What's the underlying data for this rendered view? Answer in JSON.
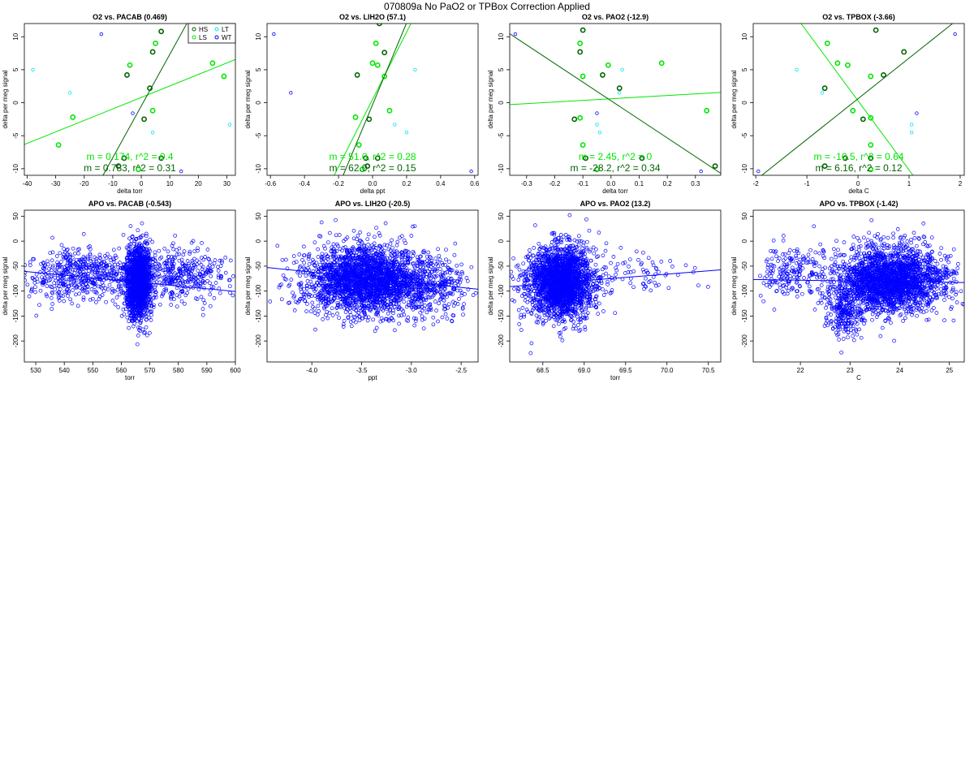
{
  "page_title": "070809a   No PaO2 or TPBox Correction Applied",
  "colors": {
    "HS": "#006400",
    "LS": "#00e600",
    "LT": "#00e5ee",
    "WT": "#0000ff",
    "apo": "#0000ff"
  },
  "legend": {
    "entries": [
      {
        "label": "HS",
        "color": "#006400"
      },
      {
        "label": "LT",
        "color": "#00e5ee"
      },
      {
        "label": "LS",
        "color": "#00e600"
      },
      {
        "label": "WT",
        "color": "#0000ff"
      }
    ]
  },
  "chart_data": [
    {
      "type": "scatter",
      "title": "O2 vs. PACAB (0.469)",
      "xlabel": "delta torr",
      "ylabel": "delta per meg signal",
      "xlim": [
        -41,
        33
      ],
      "ylim": [
        -11,
        12
      ],
      "xticks": [
        -40,
        -30,
        -20,
        -10,
        0,
        10,
        20,
        30
      ],
      "yticks": [
        -10,
        -5,
        0,
        5,
        10
      ],
      "legend": true,
      "points": [
        {
          "x": 7,
          "y": 10.8,
          "g": "HS"
        },
        {
          "x": 4,
          "y": 7.7,
          "g": "HS"
        },
        {
          "x": -5,
          "y": 4.2,
          "g": "HS"
        },
        {
          "x": 3,
          "y": 2.2,
          "g": "HS"
        },
        {
          "x": 1,
          "y": -2.5,
          "g": "HS"
        },
        {
          "x": -6,
          "y": -8.4,
          "g": "HS"
        },
        {
          "x": 7,
          "y": -8.4,
          "g": "HS"
        },
        {
          "x": -8,
          "y": -9.6,
          "g": "HS"
        },
        {
          "x": 5,
          "y": 9,
          "g": "LS"
        },
        {
          "x": -4,
          "y": 5.7,
          "g": "LS"
        },
        {
          "x": 25,
          "y": 6,
          "g": "LS"
        },
        {
          "x": 29,
          "y": 4,
          "g": "LS"
        },
        {
          "x": 4,
          "y": -1.2,
          "g": "LS"
        },
        {
          "x": -24,
          "y": -2.2,
          "g": "LS"
        },
        {
          "x": -29,
          "y": -6.4,
          "g": "LS"
        },
        {
          "x": -1,
          "y": -10.1,
          "g": "LS"
        },
        {
          "x": -38,
          "y": 5,
          "g": "LT"
        },
        {
          "x": -25,
          "y": 1.5,
          "g": "LT"
        },
        {
          "x": 31,
          "y": -3.3,
          "g": "LT"
        },
        {
          "x": 4,
          "y": -4.5,
          "g": "LT"
        },
        {
          "x": -14,
          "y": 10.4,
          "g": "WT"
        },
        {
          "x": -3,
          "y": -1.6,
          "g": "WT"
        },
        {
          "x": 14,
          "y": -10.4,
          "g": "WT"
        }
      ],
      "fits": [
        {
          "group": "LS",
          "slope": 0.174,
          "intercept": 0.8
        },
        {
          "group": "HS",
          "slope": 0.783,
          "intercept": -0.5
        }
      ],
      "annotations": [
        {
          "text": "m = 0.174, r^2 = 0.4",
          "color": "#00e600"
        },
        {
          "text": "m = 0.783, r^2 = 0.31",
          "color": "#006400"
        }
      ]
    },
    {
      "type": "scatter",
      "title": "O2 vs. LIH2O (57.1)",
      "xlabel": "delta ppt",
      "ylabel": "delta per meg signal",
      "xlim": [
        -0.62,
        0.62
      ],
      "ylim": [
        -11,
        12
      ],
      "xticks": [
        -0.6,
        -0.4,
        -0.2,
        0.0,
        0.2,
        0.4,
        0.6
      ],
      "yticks": [
        -10,
        -5,
        0,
        5,
        10
      ],
      "legend": false,
      "points": [
        {
          "x": 0.04,
          "y": 12,
          "g": "HS"
        },
        {
          "x": 0.07,
          "y": 7.6,
          "g": "HS"
        },
        {
          "x": -0.09,
          "y": 4.2,
          "g": "HS"
        },
        {
          "x": -0.02,
          "y": -2.5,
          "g": "HS"
        },
        {
          "x": -0.04,
          "y": -8.4,
          "g": "HS"
        },
        {
          "x": 0.03,
          "y": -8.4,
          "g": "HS"
        },
        {
          "x": -0.03,
          "y": -9.6,
          "g": "HS"
        },
        {
          "x": 0.02,
          "y": 9,
          "g": "LS"
        },
        {
          "x": 0.0,
          "y": 6,
          "g": "LS"
        },
        {
          "x": 0.03,
          "y": 5.7,
          "g": "LS"
        },
        {
          "x": 0.07,
          "y": 4,
          "g": "LS"
        },
        {
          "x": 0.1,
          "y": -1.2,
          "g": "LS"
        },
        {
          "x": -0.1,
          "y": -2.2,
          "g": "LS"
        },
        {
          "x": -0.08,
          "y": -6.4,
          "g": "LS"
        },
        {
          "x": -0.06,
          "y": -10.1,
          "g": "LS"
        },
        {
          "x": 0.25,
          "y": 5,
          "g": "LT"
        },
        {
          "x": 0.13,
          "y": -3.3,
          "g": "LT"
        },
        {
          "x": 0.2,
          "y": -4.5,
          "g": "LT"
        },
        {
          "x": -0.58,
          "y": 10.4,
          "g": "WT"
        },
        {
          "x": -0.48,
          "y": 1.5,
          "g": "WT"
        },
        {
          "x": 0.58,
          "y": -10.4,
          "g": "WT"
        }
      ],
      "fits": [
        {
          "group": "LS",
          "slope": 51.0,
          "intercept": 0.5
        },
        {
          "group": "HS",
          "slope": 62.0,
          "intercept": -0.3
        }
      ],
      "annotations": [
        {
          "text": "m = 51.0, r^2 = 0.28",
          "color": "#00e600"
        },
        {
          "text": "m = 62.0, r^2 = 0.15",
          "color": "#006400"
        }
      ]
    },
    {
      "type": "scatter",
      "title": "O2 vs. PAO2 (-12.9)",
      "xlabel": "delta torr",
      "ylabel": "delta per meg signal",
      "xlim": [
        -0.36,
        0.39
      ],
      "ylim": [
        -11,
        12
      ],
      "xticks": [
        -0.3,
        -0.2,
        -0.1,
        0.0,
        0.1,
        0.2,
        0.3
      ],
      "yticks": [
        -10,
        -5,
        0,
        5,
        10
      ],
      "legend": false,
      "points": [
        {
          "x": -0.1,
          "y": 11,
          "g": "HS"
        },
        {
          "x": -0.11,
          "y": 7.7,
          "g": "HS"
        },
        {
          "x": -0.03,
          "y": 4.2,
          "g": "HS"
        },
        {
          "x": 0.03,
          "y": 2.2,
          "g": "HS"
        },
        {
          "x": -0.13,
          "y": -2.5,
          "g": "HS"
        },
        {
          "x": -0.09,
          "y": -8.4,
          "g": "HS"
        },
        {
          "x": 0.11,
          "y": -8.4,
          "g": "HS"
        },
        {
          "x": 0.37,
          "y": -9.6,
          "g": "HS"
        },
        {
          "x": -0.11,
          "y": 9,
          "g": "LS"
        },
        {
          "x": -0.01,
          "y": 5.7,
          "g": "LS"
        },
        {
          "x": 0.18,
          "y": 6,
          "g": "LS"
        },
        {
          "x": -0.1,
          "y": 4,
          "g": "LS"
        },
        {
          "x": 0.34,
          "y": -1.2,
          "g": "LS"
        },
        {
          "x": -0.11,
          "y": -2.3,
          "g": "LS"
        },
        {
          "x": -0.1,
          "y": -6.4,
          "g": "LS"
        },
        {
          "x": -0.05,
          "y": -10.1,
          "g": "LS"
        },
        {
          "x": 0.04,
          "y": 5,
          "g": "LT"
        },
        {
          "x": 0.03,
          "y": 1.5,
          "g": "LT"
        },
        {
          "x": -0.05,
          "y": -3.3,
          "g": "LT"
        },
        {
          "x": -0.04,
          "y": -4.5,
          "g": "LT"
        },
        {
          "x": -0.34,
          "y": 10.4,
          "g": "WT"
        },
        {
          "x": -0.05,
          "y": -1.6,
          "g": "WT"
        },
        {
          "x": 0.32,
          "y": -10.4,
          "g": "WT"
        }
      ],
      "fits": [
        {
          "group": "LS",
          "slope": 2.45,
          "intercept": 0.6
        },
        {
          "group": "HS",
          "slope": -28.2,
          "intercept": 0.3
        }
      ],
      "annotations": [
        {
          "text": "m = 2.45, r^2 = 0",
          "color": "#00e600"
        },
        {
          "text": "m = -28.2, r^2 = 0.34",
          "color": "#006400"
        }
      ]
    },
    {
      "type": "scatter",
      "title": "O2 vs. TPBOX (-3.66)",
      "xlabel": "delta C",
      "ylabel": "delta per meg signal",
      "xlim": [
        -2.05,
        2.08
      ],
      "ylim": [
        -11,
        12
      ],
      "xticks": [
        -2,
        -1,
        0,
        1,
        2
      ],
      "yticks": [
        -10,
        -5,
        0,
        5,
        10
      ],
      "legend": false,
      "points": [
        {
          "x": 0.35,
          "y": 11,
          "g": "HS"
        },
        {
          "x": 0.9,
          "y": 7.7,
          "g": "HS"
        },
        {
          "x": 0.5,
          "y": 4.2,
          "g": "HS"
        },
        {
          "x": -0.65,
          "y": 2.2,
          "g": "HS"
        },
        {
          "x": 0.1,
          "y": -2.5,
          "g": "HS"
        },
        {
          "x": 0.25,
          "y": -8.4,
          "g": "HS"
        },
        {
          "x": -0.25,
          "y": -8.4,
          "g": "HS"
        },
        {
          "x": -0.65,
          "y": -9.6,
          "g": "HS"
        },
        {
          "x": -0.6,
          "y": 9,
          "g": "LS"
        },
        {
          "x": -0.2,
          "y": 5.7,
          "g": "LS"
        },
        {
          "x": -0.4,
          "y": 6,
          "g": "LS"
        },
        {
          "x": 0.25,
          "y": 4,
          "g": "LS"
        },
        {
          "x": -0.1,
          "y": -1.2,
          "g": "LS"
        },
        {
          "x": 0.25,
          "y": -2.3,
          "g": "LS"
        },
        {
          "x": 0.25,
          "y": -6.4,
          "g": "LS"
        },
        {
          "x": 0.25,
          "y": -10.1,
          "g": "LS"
        },
        {
          "x": -1.2,
          "y": 5,
          "g": "LT"
        },
        {
          "x": -0.7,
          "y": 1.5,
          "g": "LT"
        },
        {
          "x": 1.05,
          "y": -3.3,
          "g": "LT"
        },
        {
          "x": 1.05,
          "y": -4.5,
          "g": "LT"
        },
        {
          "x": 1.9,
          "y": 10.4,
          "g": "WT"
        },
        {
          "x": 1.15,
          "y": -1.6,
          "g": "WT"
        },
        {
          "x": -1.95,
          "y": -10.4,
          "g": "WT"
        }
      ],
      "fits": [
        {
          "group": "LS",
          "slope": -10.5,
          "intercept": 0.3
        },
        {
          "group": "HS",
          "slope": 6.16,
          "intercept": 0.6
        }
      ],
      "annotations": [
        {
          "text": "m = -10.5, r^2 = 0.64",
          "color": "#00e600"
        },
        {
          "text": "m = 6.16, r^2 = 0.12",
          "color": "#006400"
        }
      ]
    },
    {
      "type": "scatter",
      "title": "APO vs. PACAB (-0.543)",
      "xlabel": "torr",
      "ylabel": "delta per meg signal",
      "xlim": [
        526,
        600
      ],
      "ylim": [
        -242,
        62
      ],
      "xticks": [
        530,
        540,
        550,
        560,
        570,
        580,
        590,
        600
      ],
      "yticks": [
        -200,
        -150,
        -100,
        -50,
        0,
        50
      ],
      "legend": false,
      "clouds": [
        {
          "n": 1500,
          "cx": 566,
          "sx": 2.2,
          "cy": -82,
          "sy": 36
        },
        {
          "n": 520,
          "cx": 546,
          "sx": 10,
          "cy": -68,
          "sy": 26
        },
        {
          "n": 380,
          "cx": 580,
          "sx": 8,
          "cy": -68,
          "sy": 28
        }
      ],
      "fits": [
        {
          "group": "apo",
          "slope": -0.543,
          "intercept": 225
        }
      ]
    },
    {
      "type": "scatter",
      "title": "APO vs. LIH2O (-20.5)",
      "xlabel": "ppt",
      "ylabel": "delta per meg signal",
      "xlim": [
        -4.45,
        -2.33
      ],
      "ylim": [
        -242,
        62
      ],
      "xticks": [
        -4.0,
        -3.5,
        -3.0,
        -2.5
      ],
      "yticks": [
        -200,
        -150,
        -100,
        -50,
        0,
        50
      ],
      "legend": false,
      "clouds": [
        {
          "n": 2400,
          "cx": -3.45,
          "sx": 0.3,
          "cy": -78,
          "sy": 34
        },
        {
          "n": 300,
          "cx": -2.8,
          "sx": 0.2,
          "cy": -95,
          "sy": 30
        }
      ],
      "fits": [
        {
          "group": "apo",
          "slope": -20.5,
          "intercept": -144
        }
      ]
    },
    {
      "type": "scatter",
      "title": "APO vs. PAO2 (13.2)",
      "xlabel": "torr",
      "ylabel": "delta per meg signal",
      "xlim": [
        68.1,
        70.65
      ],
      "ylim": [
        -242,
        62
      ],
      "xticks": [
        68.5,
        69.0,
        69.5,
        70.0,
        70.5
      ],
      "yticks": [
        -200,
        -150,
        -100,
        -50,
        0,
        50
      ],
      "legend": false,
      "clouds": [
        {
          "n": 2300,
          "cx": 68.72,
          "sx": 0.2,
          "cy": -82,
          "sy": 36
        },
        {
          "n": 80,
          "cx": 69.6,
          "sx": 0.35,
          "cy": -62,
          "sy": 22
        }
      ],
      "fits": [
        {
          "group": "apo",
          "slope": 13.2,
          "intercept": -990
        }
      ]
    },
    {
      "type": "scatter",
      "title": "APO vs. TPBOX (-1.42)",
      "xlabel": "C",
      "ylabel": "delta per meg signal",
      "xlim": [
        21.05,
        25.3
      ],
      "ylim": [
        -242,
        62
      ],
      "xticks": [
        22,
        23,
        24,
        25
      ],
      "yticks": [
        -200,
        -150,
        -100,
        -50,
        0,
        50
      ],
      "legend": false,
      "clouds": [
        {
          "n": 2300,
          "cx": 23.8,
          "sx": 0.55,
          "cy": -78,
          "sy": 32
        },
        {
          "n": 180,
          "cx": 21.8,
          "sx": 0.3,
          "cy": -62,
          "sy": 26
        },
        {
          "n": 220,
          "cx": 22.9,
          "sx": 0.2,
          "cy": -150,
          "sy": 25
        }
      ],
      "fits": [
        {
          "group": "apo",
          "slope": -1.42,
          "intercept": -47
        }
      ]
    }
  ]
}
